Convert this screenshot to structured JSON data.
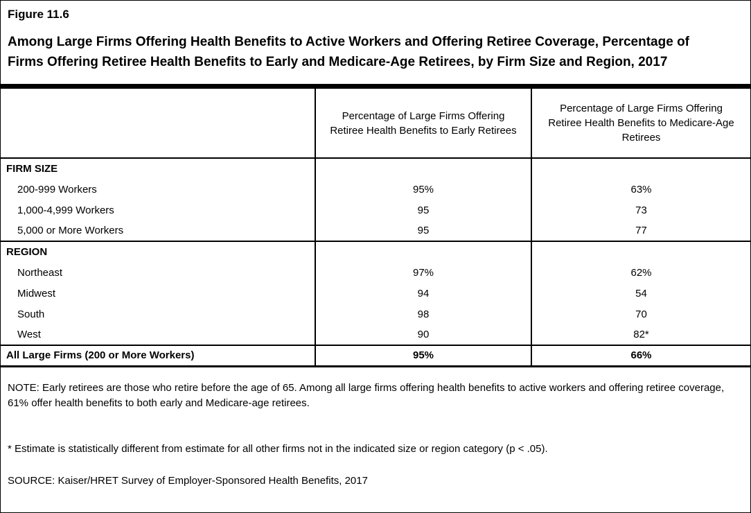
{
  "figure": {
    "label": "Figure 11.6",
    "title": "Among Large Firms Offering Health Benefits to Active Workers and Offering Retiree Coverage, Percentage of Firms Offering Retiree Health Benefits to Early and Medicare-Age Retirees, by Firm Size and Region, 2017"
  },
  "table": {
    "header_early": "Percentage of Large Firms Offering Retiree Health Benefits to Early Retirees",
    "header_medicare": "Percentage of Large Firms Offering Retiree Health Benefits to Medicare-Age Retirees",
    "firm_size": {
      "section_label": "FIRM SIZE",
      "rows": [
        {
          "label": "200-999 Workers",
          "early": "95%",
          "medicare": "63%"
        },
        {
          "label": "1,000-4,999 Workers",
          "early": "95",
          "medicare": "73"
        },
        {
          "label": "5,000 or More Workers",
          "early": "95",
          "medicare": "77"
        }
      ]
    },
    "region": {
      "section_label": "REGION",
      "rows": [
        {
          "label": "Northeast",
          "early": "97%",
          "medicare": "62%"
        },
        {
          "label": "Midwest",
          "early": "94",
          "medicare": "54"
        },
        {
          "label": "South",
          "early": "98",
          "medicare": "70"
        },
        {
          "label": "West",
          "early": "90",
          "medicare": "82*"
        }
      ]
    },
    "total": {
      "label": "All Large Firms (200 or More Workers)",
      "early": "95%",
      "medicare": "66%"
    }
  },
  "notes": {
    "note": "NOTE: Early retirees are those who retire before the age of 65. Among all large firms offering health benefits to active workers and offering retiree coverage, 61% offer health benefits to both early and Medicare-age retirees.",
    "footnote": "* Estimate is statistically different from estimate for all other firms not in the indicated size or region category (p < .05).",
    "source": "SOURCE: Kaiser/HRET Survey of Employer-Sponsored Health Benefits, 2017"
  },
  "chart_data": {
    "type": "table",
    "title": "Among Large Firms Offering Health Benefits to Active Workers and Offering Retiree Coverage, Percentage of Firms Offering Retiree Health Benefits to Early and Medicare-Age Retirees, by Firm Size and Region, 2017",
    "columns": [
      "",
      "Percentage of Large Firms Offering Retiree Health Benefits to Early Retirees",
      "Percentage of Large Firms Offering Retiree Health Benefits to Medicare-Age Retirees"
    ],
    "sections": [
      {
        "name": "FIRM SIZE",
        "rows": [
          [
            "200-999 Workers",
            "95%",
            "63%"
          ],
          [
            "1,000-4,999 Workers",
            "95",
            "73"
          ],
          [
            "5,000 or More Workers",
            "95",
            "77"
          ]
        ]
      },
      {
        "name": "REGION",
        "rows": [
          [
            "Northeast",
            "97%",
            "62%"
          ],
          [
            "Midwest",
            "94",
            "54"
          ],
          [
            "South",
            "98",
            "70"
          ],
          [
            "West",
            "90",
            "82*"
          ]
        ]
      }
    ],
    "total_row": [
      "All Large Firms (200 or More Workers)",
      "95%",
      "66%"
    ],
    "footnote": "* Estimate is statistically different from estimate for all other firms not in the indicated size or region category (p < .05).",
    "source": "Kaiser/HRET Survey of Employer-Sponsored Health Benefits, 2017"
  }
}
